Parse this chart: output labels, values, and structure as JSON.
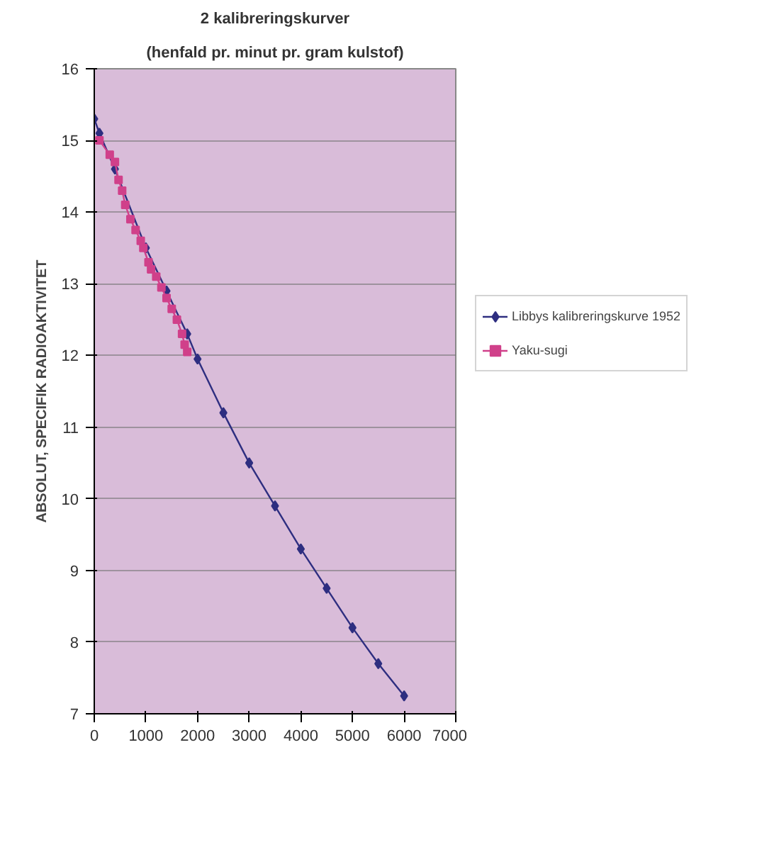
{
  "chart_data": {
    "type": "line",
    "title": "2 kalibreringskurver",
    "subtitle": "(henfald pr. minut pr. gram kulstof)",
    "ylabel": "ABSOLUT, SPECIFIK RADIOAKTIVITET",
    "xlim": [
      0,
      7000
    ],
    "xticks": [
      0,
      1000,
      2000,
      3000,
      4000,
      5000,
      6000,
      7000
    ],
    "ylim": [
      7,
      16
    ],
    "yticks": [
      7,
      8,
      9,
      10,
      11,
      12,
      13,
      14,
      15,
      16
    ],
    "grid": "y",
    "legend": "right",
    "series": [
      {
        "name": "Libbys kalibreringskurve 1952",
        "color": "#2e2e80",
        "marker": "diamond",
        "x": [
          0,
          100,
          400,
          1000,
          1400,
          1800,
          2000,
          2500,
          3000,
          3500,
          4000,
          4500,
          5000,
          5500,
          6000
        ],
        "values": [
          15.3,
          15.1,
          14.6,
          13.5,
          12.9,
          12.3,
          11.95,
          11.2,
          10.5,
          9.9,
          9.3,
          8.75,
          8.2,
          7.7,
          7.25
        ]
      },
      {
        "name": "Yaku-sugi",
        "color": "#d0408a",
        "marker": "square",
        "x": [
          100,
          300,
          400,
          470,
          540,
          600,
          700,
          800,
          900,
          950,
          1050,
          1100,
          1200,
          1300,
          1400,
          1500,
          1600,
          1700,
          1750,
          1800
        ],
        "values": [
          15.0,
          14.8,
          14.7,
          14.45,
          14.3,
          14.1,
          13.9,
          13.75,
          13.6,
          13.5,
          13.3,
          13.2,
          13.1,
          12.95,
          12.8,
          12.65,
          12.5,
          12.3,
          12.15,
          12.05
        ]
      }
    ]
  }
}
